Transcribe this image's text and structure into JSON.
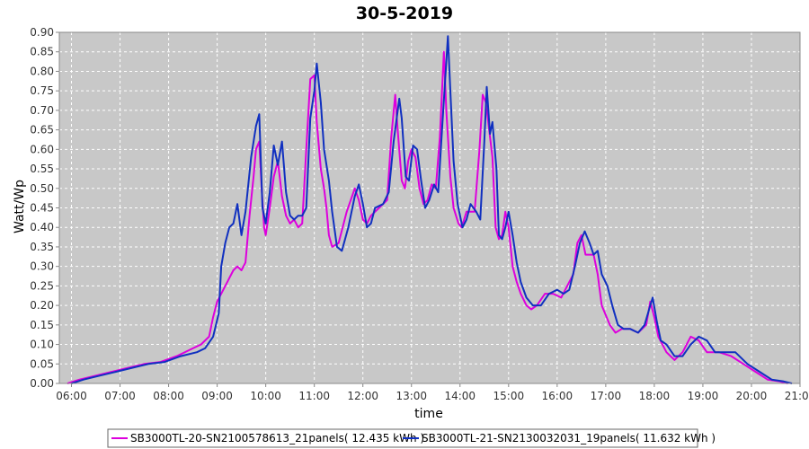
{
  "chart_data": {
    "type": "line",
    "title": "30-5-2019",
    "xlabel": "time",
    "ylabel": "Watt/Wp",
    "xlim": [
      "05:45",
      "21:00"
    ],
    "ylim": [
      0,
      0.9
    ],
    "x_ticks": [
      "06:00",
      "07:00",
      "08:00",
      "09:00",
      "10:00",
      "11:00",
      "12:00",
      "13:00",
      "14:00",
      "15:00",
      "16:00",
      "17:00",
      "18:00",
      "19:00",
      "20:00",
      "21:00"
    ],
    "y_ticks": [
      "0.00",
      "0.05",
      "0.10",
      "0.15",
      "0.20",
      "0.25",
      "0.30",
      "0.35",
      "0.40",
      "0.45",
      "0.50",
      "0.55",
      "0.60",
      "0.65",
      "0.70",
      "0.75",
      "0.80",
      "0.85",
      "0.90"
    ],
    "grid": true,
    "legend_position": "bottom",
    "background": "#c8c8c8",
    "series": [
      {
        "name": "SB3000TL-20-SN2100578613_21panels( 12.435 kWh )",
        "color": "#dd00dd",
        "points": [
          [
            "05:55",
            0.0
          ],
          [
            "06:10",
            0.01
          ],
          [
            "06:30",
            0.02
          ],
          [
            "06:50",
            0.03
          ],
          [
            "07:10",
            0.04
          ],
          [
            "07:30",
            0.05
          ],
          [
            "07:50",
            0.055
          ],
          [
            "08:10",
            0.07
          ],
          [
            "08:30",
            0.09
          ],
          [
            "08:40",
            0.1
          ],
          [
            "08:50",
            0.12
          ],
          [
            "08:55",
            0.17
          ],
          [
            "09:00",
            0.21
          ],
          [
            "09:10",
            0.25
          ],
          [
            "09:20",
            0.29
          ],
          [
            "09:25",
            0.3
          ],
          [
            "09:30",
            0.29
          ],
          [
            "09:35",
            0.31
          ],
          [
            "09:40",
            0.43
          ],
          [
            "09:45",
            0.53
          ],
          [
            "09:48",
            0.6
          ],
          [
            "09:52",
            0.62
          ],
          [
            "09:55",
            0.5
          ],
          [
            "09:58",
            0.4
          ],
          [
            "10:00",
            0.38
          ],
          [
            "10:05",
            0.45
          ],
          [
            "10:10",
            0.53
          ],
          [
            "10:15",
            0.57
          ],
          [
            "10:20",
            0.48
          ],
          [
            "10:25",
            0.43
          ],
          [
            "10:30",
            0.41
          ],
          [
            "10:35",
            0.42
          ],
          [
            "10:40",
            0.4
          ],
          [
            "10:45",
            0.41
          ],
          [
            "10:50",
            0.6
          ],
          [
            "10:55",
            0.78
          ],
          [
            "11:00",
            0.79
          ],
          [
            "11:03",
            0.67
          ],
          [
            "11:08",
            0.55
          ],
          [
            "11:12",
            0.5
          ],
          [
            "11:15",
            0.45
          ],
          [
            "11:18",
            0.38
          ],
          [
            "11:22",
            0.35
          ],
          [
            "11:30",
            0.36
          ],
          [
            "11:40",
            0.44
          ],
          [
            "11:50",
            0.5
          ],
          [
            "11:55",
            0.47
          ],
          [
            "12:00",
            0.42
          ],
          [
            "12:05",
            0.41
          ],
          [
            "12:10",
            0.43
          ],
          [
            "12:20",
            0.45
          ],
          [
            "12:30",
            0.47
          ],
          [
            "12:35",
            0.63
          ],
          [
            "12:40",
            0.74
          ],
          [
            "12:43",
            0.65
          ],
          [
            "12:48",
            0.52
          ],
          [
            "12:52",
            0.5
          ],
          [
            "12:56",
            0.57
          ],
          [
            "13:00",
            0.6
          ],
          [
            "13:05",
            0.58
          ],
          [
            "13:10",
            0.5
          ],
          [
            "13:15",
            0.46
          ],
          [
            "13:20",
            0.47
          ],
          [
            "13:25",
            0.51
          ],
          [
            "13:30",
            0.5
          ],
          [
            "13:35",
            0.63
          ],
          [
            "13:40",
            0.85
          ],
          [
            "13:43",
            0.7
          ],
          [
            "13:48",
            0.53
          ],
          [
            "13:52",
            0.45
          ],
          [
            "13:58",
            0.41
          ],
          [
            "14:02",
            0.4
          ],
          [
            "14:08",
            0.44
          ],
          [
            "14:12",
            0.44
          ],
          [
            "14:18",
            0.44
          ],
          [
            "14:24",
            0.6
          ],
          [
            "14:28",
            0.74
          ],
          [
            "14:32",
            0.72
          ],
          [
            "14:36",
            0.65
          ],
          [
            "14:40",
            0.58
          ],
          [
            "14:44",
            0.4
          ],
          [
            "14:48",
            0.37
          ],
          [
            "14:52",
            0.38
          ],
          [
            "14:56",
            0.44
          ],
          [
            "15:00",
            0.4
          ],
          [
            "15:05",
            0.3
          ],
          [
            "15:10",
            0.26
          ],
          [
            "15:15",
            0.23
          ],
          [
            "15:22",
            0.2
          ],
          [
            "15:28",
            0.19
          ],
          [
            "15:35",
            0.2
          ],
          [
            "15:45",
            0.23
          ],
          [
            "15:55",
            0.23
          ],
          [
            "16:05",
            0.22
          ],
          [
            "16:10",
            0.24
          ],
          [
            "16:20",
            0.28
          ],
          [
            "16:25",
            0.36
          ],
          [
            "16:30",
            0.38
          ],
          [
            "16:35",
            0.33
          ],
          [
            "16:40",
            0.33
          ],
          [
            "16:45",
            0.33
          ],
          [
            "16:50",
            0.28
          ],
          [
            "16:55",
            0.2
          ],
          [
            "17:05",
            0.15
          ],
          [
            "17:12",
            0.13
          ],
          [
            "17:20",
            0.14
          ],
          [
            "17:30",
            0.14
          ],
          [
            "17:40",
            0.13
          ],
          [
            "17:50",
            0.15
          ],
          [
            "17:55",
            0.21
          ],
          [
            "18:00",
            0.17
          ],
          [
            "18:05",
            0.12
          ],
          [
            "18:15",
            0.08
          ],
          [
            "18:25",
            0.06
          ],
          [
            "18:35",
            0.08
          ],
          [
            "18:45",
            0.12
          ],
          [
            "18:55",
            0.11
          ],
          [
            "19:05",
            0.08
          ],
          [
            "19:20",
            0.08
          ],
          [
            "19:35",
            0.07
          ],
          [
            "19:50",
            0.05
          ],
          [
            "20:05",
            0.03
          ],
          [
            "20:20",
            0.01
          ],
          [
            "20:35",
            0.005
          ],
          [
            "20:45",
            0.0
          ]
        ]
      },
      {
        "name": "SB3000TL-21-SN2130032031_19panels( 11.632 kWh )",
        "color": "#1030c0",
        "points": [
          [
            "06:00",
            0.0
          ],
          [
            "06:15",
            0.01
          ],
          [
            "06:35",
            0.02
          ],
          [
            "06:55",
            0.03
          ],
          [
            "07:15",
            0.04
          ],
          [
            "07:35",
            0.05
          ],
          [
            "07:55",
            0.055
          ],
          [
            "08:15",
            0.07
          ],
          [
            "08:35",
            0.08
          ],
          [
            "08:45",
            0.09
          ],
          [
            "08:55",
            0.12
          ],
          [
            "09:02",
            0.18
          ],
          [
            "09:05",
            0.3
          ],
          [
            "09:10",
            0.36
          ],
          [
            "09:15",
            0.4
          ],
          [
            "09:20",
            0.41
          ],
          [
            "09:25",
            0.46
          ],
          [
            "09:30",
            0.38
          ],
          [
            "09:35",
            0.44
          ],
          [
            "09:42",
            0.58
          ],
          [
            "09:48",
            0.66
          ],
          [
            "09:52",
            0.69
          ],
          [
            "09:56",
            0.45
          ],
          [
            "10:00",
            0.41
          ],
          [
            "10:05",
            0.49
          ],
          [
            "10:10",
            0.61
          ],
          [
            "10:15",
            0.56
          ],
          [
            "10:20",
            0.62
          ],
          [
            "10:25",
            0.49
          ],
          [
            "10:30",
            0.43
          ],
          [
            "10:35",
            0.42
          ],
          [
            "10:40",
            0.43
          ],
          [
            "10:45",
            0.43
          ],
          [
            "10:50",
            0.45
          ],
          [
            "10:55",
            0.68
          ],
          [
            "11:00",
            0.75
          ],
          [
            "11:03",
            0.82
          ],
          [
            "11:08",
            0.72
          ],
          [
            "11:12",
            0.6
          ],
          [
            "11:18",
            0.52
          ],
          [
            "11:22",
            0.44
          ],
          [
            "11:28",
            0.35
          ],
          [
            "11:34",
            0.34
          ],
          [
            "11:42",
            0.4
          ],
          [
            "11:50",
            0.48
          ],
          [
            "11:55",
            0.51
          ],
          [
            "12:00",
            0.46
          ],
          [
            "12:05",
            0.4
          ],
          [
            "12:10",
            0.41
          ],
          [
            "12:15",
            0.45
          ],
          [
            "12:25",
            0.46
          ],
          [
            "12:32",
            0.49
          ],
          [
            "12:38",
            0.62
          ],
          [
            "12:45",
            0.73
          ],
          [
            "12:48",
            0.68
          ],
          [
            "12:53",
            0.53
          ],
          [
            "12:57",
            0.52
          ],
          [
            "13:02",
            0.61
          ],
          [
            "13:07",
            0.6
          ],
          [
            "13:12",
            0.52
          ],
          [
            "13:17",
            0.45
          ],
          [
            "13:22",
            0.47
          ],
          [
            "13:28",
            0.51
          ],
          [
            "13:33",
            0.49
          ],
          [
            "13:38",
            0.66
          ],
          [
            "13:45",
            0.89
          ],
          [
            "13:48",
            0.75
          ],
          [
            "13:52",
            0.57
          ],
          [
            "13:57",
            0.46
          ],
          [
            "14:03",
            0.4
          ],
          [
            "14:08",
            0.42
          ],
          [
            "14:13",
            0.46
          ],
          [
            "14:20",
            0.44
          ],
          [
            "14:25",
            0.42
          ],
          [
            "14:30",
            0.62
          ],
          [
            "14:33",
            0.76
          ],
          [
            "14:37",
            0.64
          ],
          [
            "14:40",
            0.67
          ],
          [
            "14:45",
            0.55
          ],
          [
            "14:48",
            0.38
          ],
          [
            "14:52",
            0.37
          ],
          [
            "14:56",
            0.4
          ],
          [
            "15:00",
            0.44
          ],
          [
            "15:05",
            0.38
          ],
          [
            "15:10",
            0.31
          ],
          [
            "15:15",
            0.26
          ],
          [
            "15:22",
            0.22
          ],
          [
            "15:30",
            0.2
          ],
          [
            "15:40",
            0.2
          ],
          [
            "15:50",
            0.23
          ],
          [
            "16:00",
            0.24
          ],
          [
            "16:08",
            0.23
          ],
          [
            "16:15",
            0.24
          ],
          [
            "16:22",
            0.3
          ],
          [
            "16:28",
            0.36
          ],
          [
            "16:34",
            0.39
          ],
          [
            "16:40",
            0.36
          ],
          [
            "16:45",
            0.33
          ],
          [
            "16:50",
            0.34
          ],
          [
            "16:55",
            0.28
          ],
          [
            "17:02",
            0.25
          ],
          [
            "17:08",
            0.2
          ],
          [
            "17:15",
            0.15
          ],
          [
            "17:22",
            0.14
          ],
          [
            "17:30",
            0.14
          ],
          [
            "17:40",
            0.13
          ],
          [
            "17:48",
            0.15
          ],
          [
            "17:55",
            0.2
          ],
          [
            "17:58",
            0.22
          ],
          [
            "18:03",
            0.16
          ],
          [
            "18:08",
            0.11
          ],
          [
            "18:15",
            0.1
          ],
          [
            "18:25",
            0.07
          ],
          [
            "18:35",
            0.07
          ],
          [
            "18:45",
            0.1
          ],
          [
            "18:55",
            0.12
          ],
          [
            "19:05",
            0.11
          ],
          [
            "19:15",
            0.08
          ],
          [
            "19:25",
            0.08
          ],
          [
            "19:40",
            0.08
          ],
          [
            "19:55",
            0.05
          ],
          [
            "20:10",
            0.03
          ],
          [
            "20:25",
            0.01
          ],
          [
            "20:40",
            0.005
          ],
          [
            "20:50",
            0.0
          ]
        ]
      }
    ]
  }
}
